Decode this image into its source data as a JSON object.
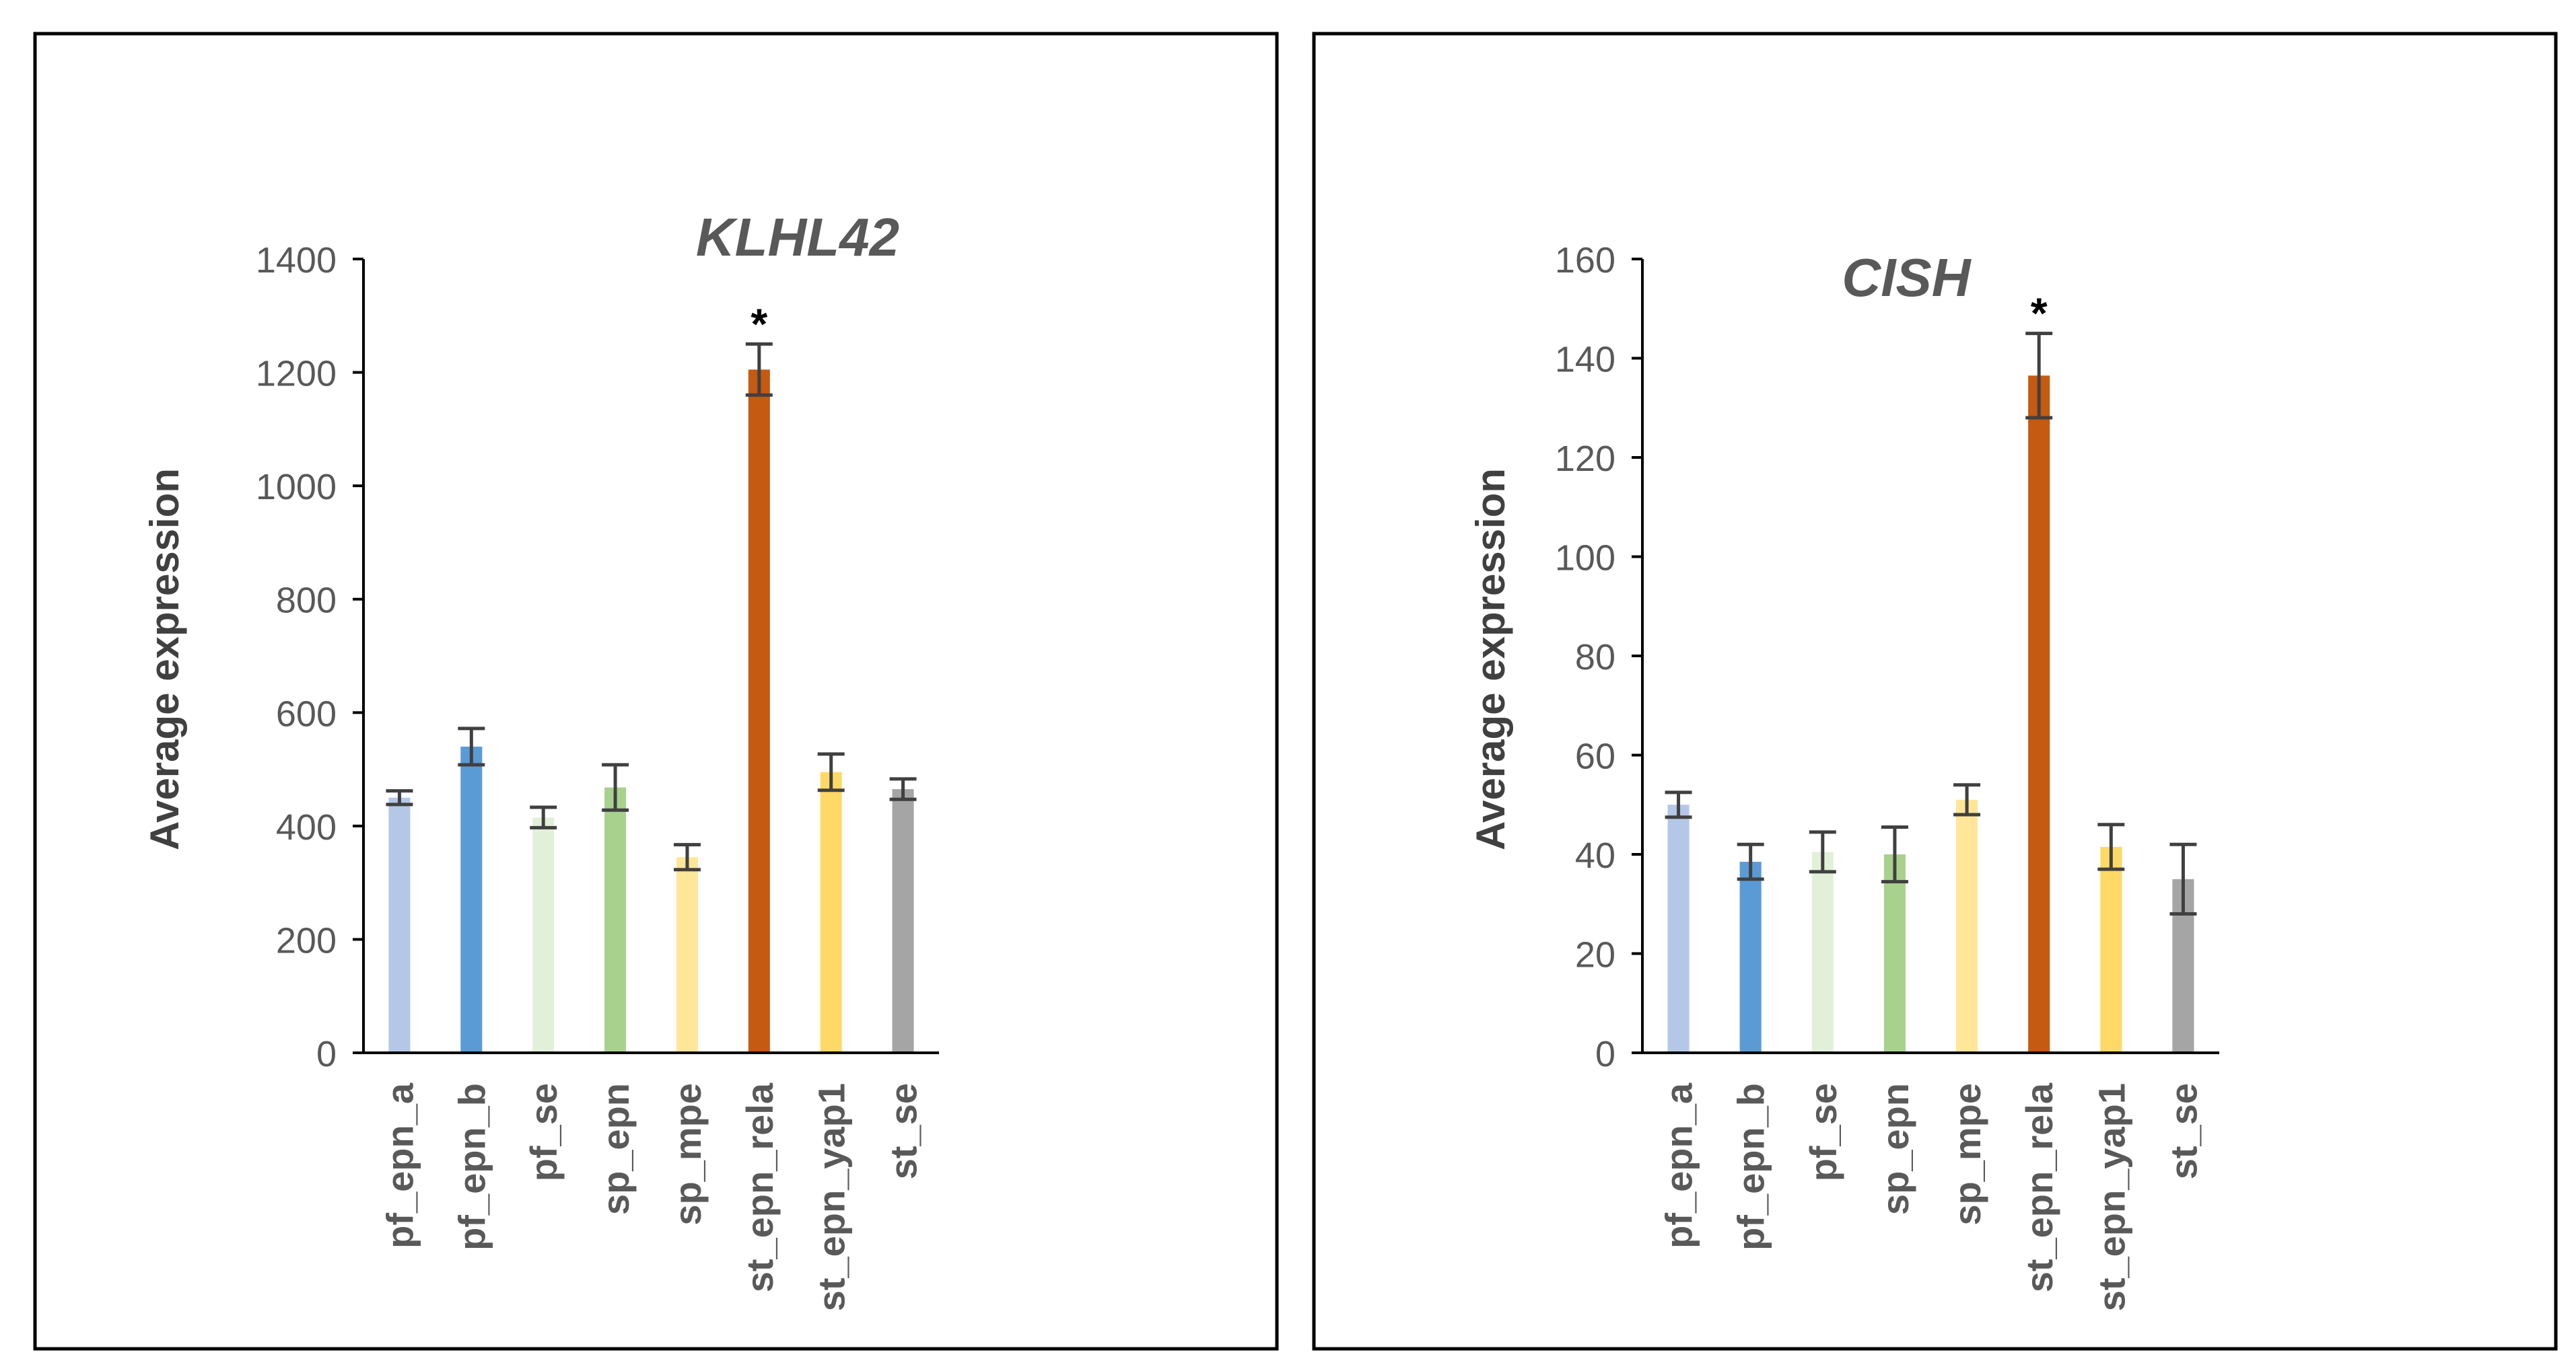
{
  "chart_data": [
    {
      "type": "bar",
      "title": "KLHL42",
      "xlabel": "",
      "ylabel": "Average expression",
      "ylim": [
        0,
        1400
      ],
      "yticks": [
        0,
        200,
        400,
        600,
        800,
        1000,
        1200,
        1400
      ],
      "categories": [
        "pf_epn_a",
        "pf_epn_b",
        "pf_se",
        "sp_epn",
        "sp_mpe",
        "st_epn_rela",
        "st_epn_yap1",
        "st_se"
      ],
      "values": [
        450,
        540,
        415,
        468,
        345,
        1205,
        495,
        465
      ],
      "errors": [
        12,
        32,
        18,
        40,
        22,
        45,
        32,
        18
      ],
      "colors": [
        "#b4c7e7",
        "#5b9bd5",
        "#e2f0d9",
        "#a9d18e",
        "#ffe699",
        "#c55a11",
        "#ffd966",
        "#a5a5a5"
      ],
      "significance": [
        "",
        "",
        "",
        "",
        "",
        "*",
        "",
        ""
      ],
      "grid": false
    },
    {
      "type": "bar",
      "title": "CISH",
      "xlabel": "",
      "ylabel": "Average expression",
      "ylim": [
        0,
        160
      ],
      "yticks": [
        0,
        20,
        40,
        60,
        80,
        100,
        120,
        140,
        160
      ],
      "categories": [
        "pf_epn_a",
        "pf_epn_b",
        "pf_se",
        "sp_epn",
        "sp_mpe",
        "st_epn_rela",
        "st_epn_yap1",
        "st_se"
      ],
      "values": [
        50,
        38.5,
        40.5,
        40,
        51,
        136.5,
        41.5,
        35
      ],
      "errors": [
        2.5,
        3.5,
        4,
        5.5,
        3,
        8.5,
        4.5,
        7
      ],
      "colors": [
        "#b4c7e7",
        "#5b9bd5",
        "#e2f0d9",
        "#a9d18e",
        "#ffe699",
        "#c55a11",
        "#ffd966",
        "#a5a5a5"
      ],
      "significance": [
        "",
        "",
        "",
        "",
        "",
        "*",
        "",
        ""
      ],
      "grid": false
    }
  ]
}
